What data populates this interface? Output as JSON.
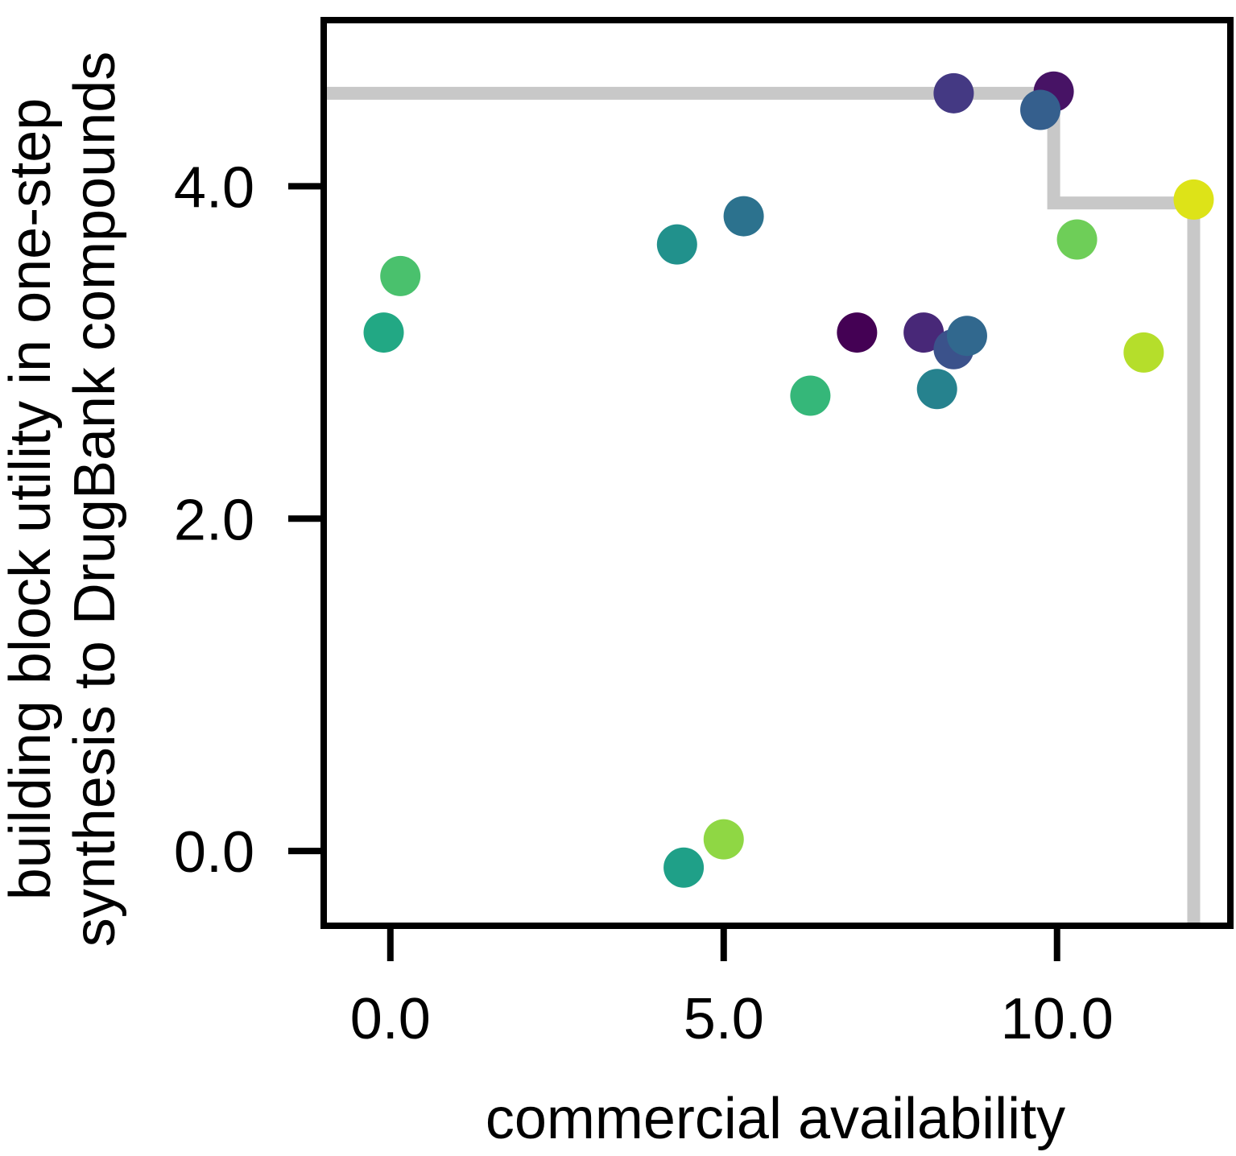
{
  "chart_data": {
    "type": "scatter",
    "title": "",
    "xlabel": "commercial availability",
    "ylabel_lines": [
      "building block utility in one-step",
      "synthesis to DrugBank compounds"
    ],
    "xlim": [
      -1.0,
      12.6
    ],
    "ylim": [
      -0.45,
      5.0
    ],
    "xticks": [
      0.0,
      5.0,
      10.0
    ],
    "xtick_labels": [
      "0.0",
      "5.0",
      "10.0"
    ],
    "yticks": [
      0.0,
      2.0,
      4.0
    ],
    "ytick_labels": [
      "0.0",
      "2.0",
      "4.0"
    ],
    "grid": false,
    "frontier_color": "#c8c8c8",
    "frontier": [
      {
        "x": -1.0,
        "y": 4.56
      },
      {
        "x": 9.95,
        "y": 4.56
      },
      {
        "x": 9.95,
        "y": 3.9
      },
      {
        "x": 12.05,
        "y": 3.9
      },
      {
        "x": 12.05,
        "y": -0.45
      }
    ],
    "points": [
      {
        "x": -0.1,
        "y": 3.12,
        "color": "#22a884"
      },
      {
        "x": 0.15,
        "y": 3.46,
        "color": "#4ac16d"
      },
      {
        "x": 4.3,
        "y": 3.65,
        "color": "#21918c"
      },
      {
        "x": 5.3,
        "y": 3.82,
        "color": "#2c728e"
      },
      {
        "x": 4.4,
        "y": -0.1,
        "color": "#1fa088"
      },
      {
        "x": 5.0,
        "y": 0.07,
        "color": "#8fd744"
      },
      {
        "x": 6.3,
        "y": 2.74,
        "color": "#35b779"
      },
      {
        "x": 7.0,
        "y": 3.12,
        "color": "#440154"
      },
      {
        "x": 8.0,
        "y": 3.12,
        "color": "#482878"
      },
      {
        "x": 8.45,
        "y": 3.02,
        "color": "#3b528b"
      },
      {
        "x": 8.65,
        "y": 3.1,
        "color": "#31688e"
      },
      {
        "x": 8.2,
        "y": 2.78,
        "color": "#26828e"
      },
      {
        "x": 8.45,
        "y": 4.56,
        "color": "#443983"
      },
      {
        "x": 9.95,
        "y": 4.57,
        "color": "#471365"
      },
      {
        "x": 9.75,
        "y": 4.46,
        "color": "#355f8d"
      },
      {
        "x": 10.3,
        "y": 3.68,
        "color": "#6ece58"
      },
      {
        "x": 11.3,
        "y": 3.0,
        "color": "#b5de2b"
      },
      {
        "x": 12.05,
        "y": 3.92,
        "color": "#dde318"
      }
    ]
  }
}
